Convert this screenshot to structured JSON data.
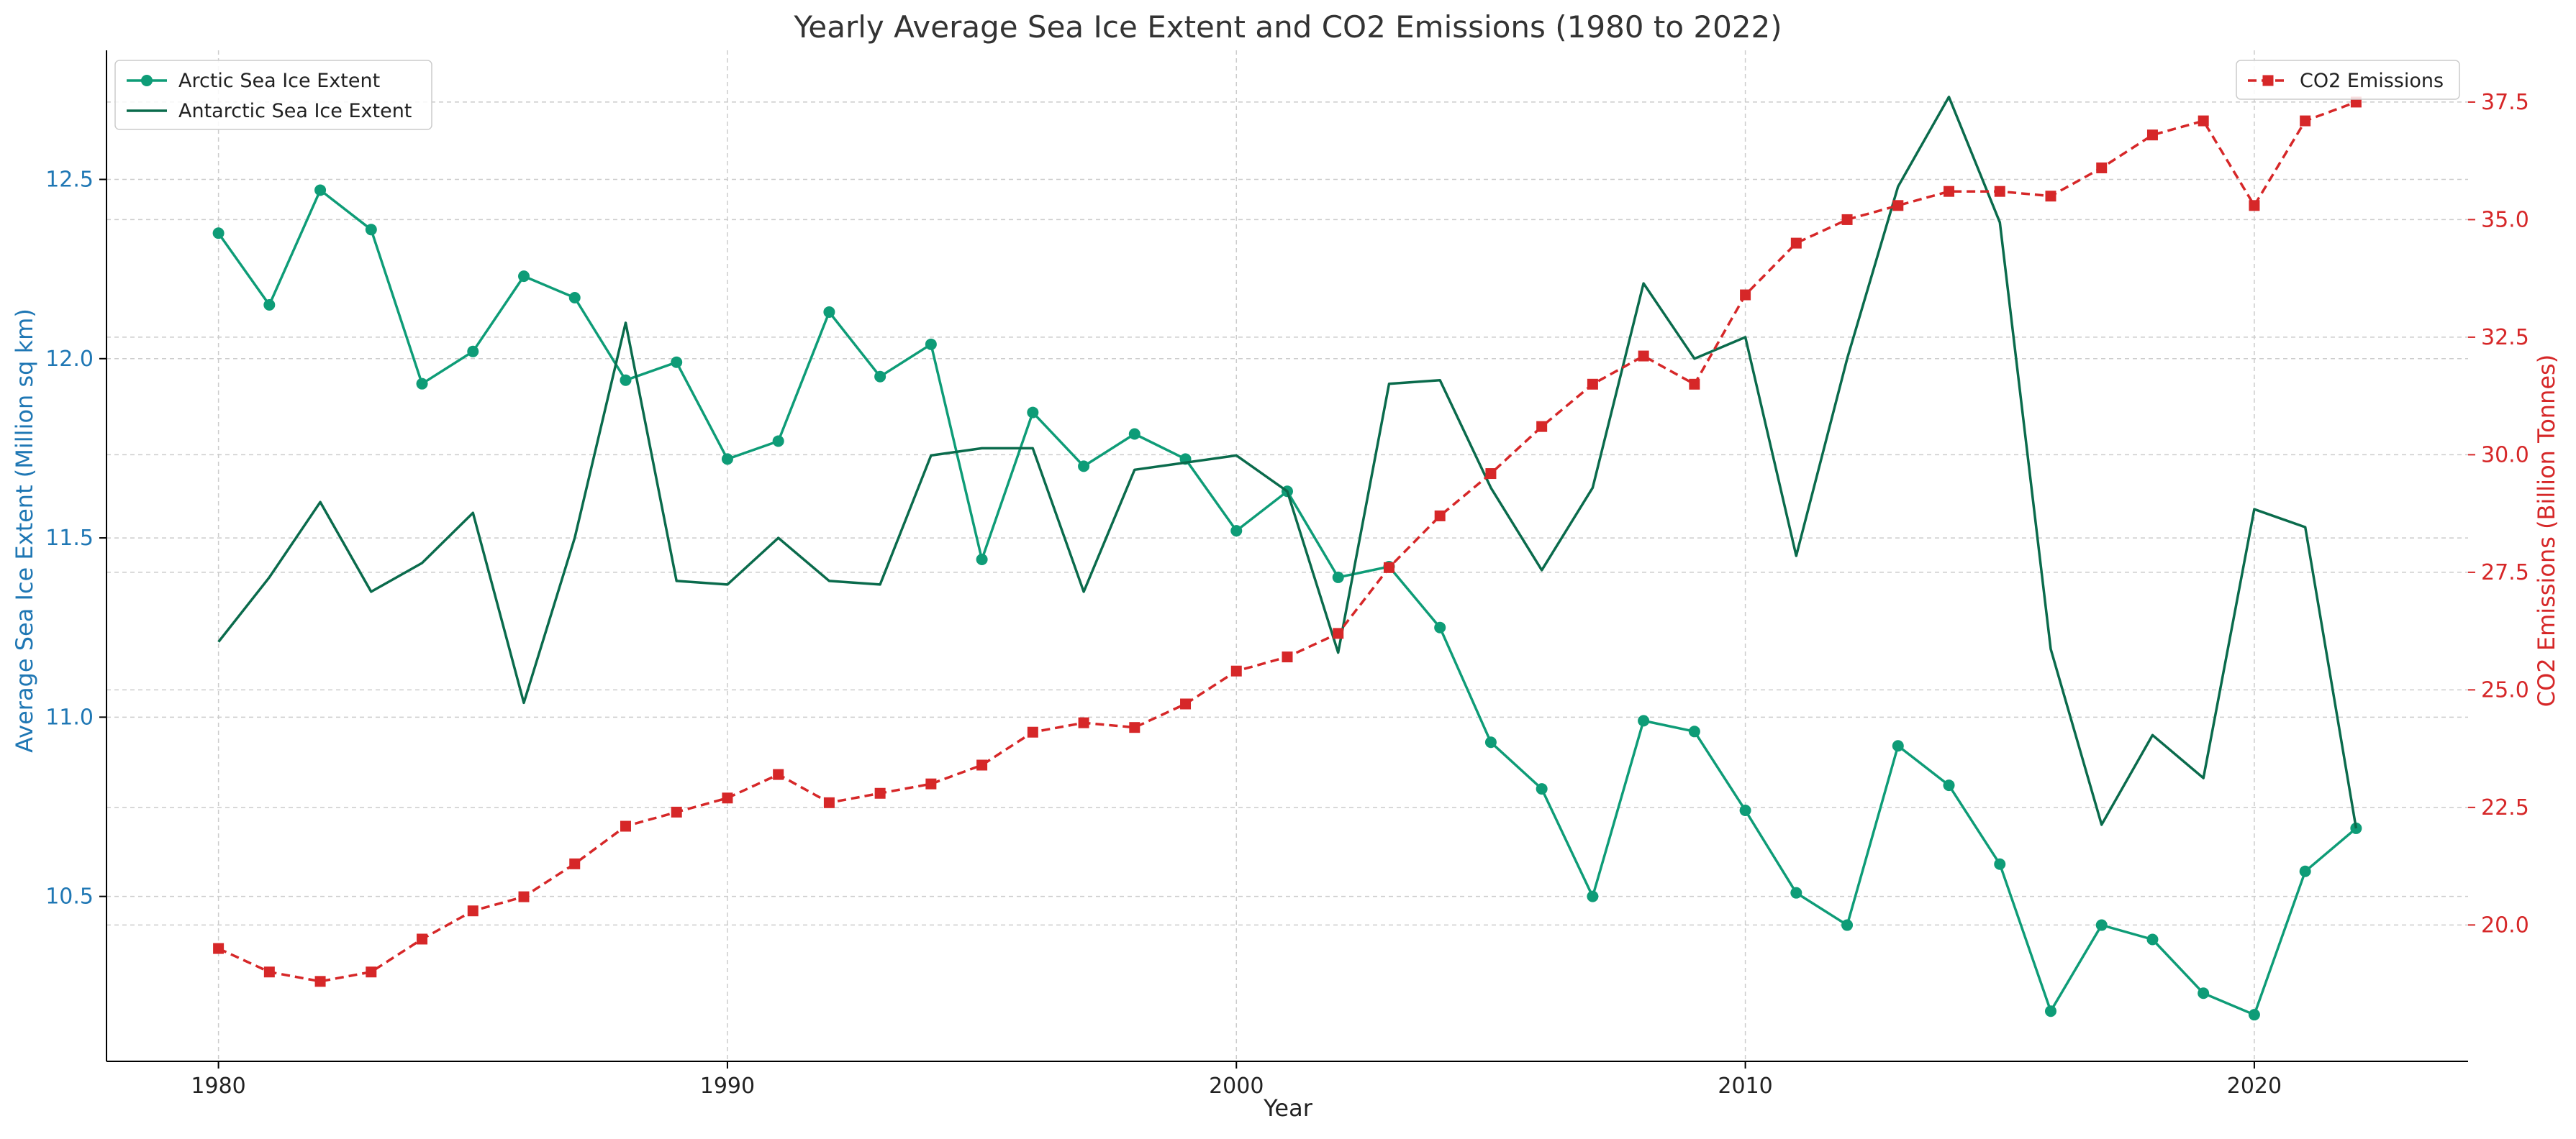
{
  "chart_data": {
    "type": "line",
    "title": "Yearly Average Sea Ice Extent and CO2 Emissions (1980 to 2022)",
    "xlabel": "Year",
    "ylabel_left": "Average Sea Ice Extent (Million sq km)",
    "ylabel_right": "CO2 Emissions (Billion Tonnes)",
    "xlim": [
      1977.8,
      2024.2
    ],
    "ylim_left": [
      10.04,
      12.86
    ],
    "ylim_right": [
      17.1,
      38.6
    ],
    "xticks": [
      1980,
      1990,
      2000,
      2010,
      2020
    ],
    "yticks_left": [
      10.5,
      11.0,
      11.5,
      12.0,
      12.5
    ],
    "yticks_right": [
      20.0,
      22.5,
      25.0,
      27.5,
      30.0,
      32.5,
      35.0,
      37.5
    ],
    "xtick_labels": [
      "1980",
      "1990",
      "2000",
      "2010",
      "2020"
    ],
    "ytick_labels_left": [
      "10.5",
      "11.0",
      "11.5",
      "12.0",
      "12.5"
    ],
    "ytick_labels_right": [
      "20.0",
      "22.5",
      "25.0",
      "27.5",
      "30.0",
      "32.5",
      "35.0",
      "37.5"
    ],
    "grid": true,
    "x": [
      1980,
      1981,
      1982,
      1983,
      1984,
      1985,
      1986,
      1987,
      1988,
      1989,
      1990,
      1991,
      1992,
      1993,
      1994,
      1995,
      1996,
      1997,
      1998,
      1999,
      2000,
      2001,
      2002,
      2003,
      2004,
      2005,
      2006,
      2007,
      2008,
      2009,
      2010,
      2011,
      2012,
      2013,
      2014,
      2015,
      2016,
      2017,
      2018,
      2019,
      2020,
      2021,
      2022
    ],
    "series": [
      {
        "name": "Arctic Sea Ice Extent",
        "axis": "left",
        "color": "#0e9c77",
        "marker": "circle",
        "linestyle": "solid",
        "values": [
          12.35,
          12.15,
          12.47,
          12.36,
          11.93,
          12.02,
          12.23,
          12.17,
          11.94,
          11.99,
          11.72,
          11.77,
          12.13,
          11.95,
          12.04,
          11.44,
          11.85,
          11.7,
          11.79,
          11.72,
          11.52,
          11.63,
          11.39,
          11.42,
          11.25,
          10.93,
          10.8,
          10.5,
          10.99,
          10.96,
          10.74,
          10.51,
          10.42,
          10.92,
          10.81,
          10.59,
          10.18,
          10.42,
          10.38,
          10.23,
          10.17,
          10.57,
          10.69
        ]
      },
      {
        "name": "Antarctic Sea Ice Extent",
        "axis": "left",
        "color": "#0a6b4c",
        "marker": "none",
        "linestyle": "solid",
        "values": [
          11.21,
          11.39,
          11.6,
          11.35,
          11.43,
          11.57,
          11.04,
          11.5,
          12.1,
          11.38,
          11.37,
          11.5,
          11.38,
          11.37,
          11.73,
          11.75,
          11.75,
          11.35,
          11.69,
          11.71,
          11.73,
          11.63,
          11.18,
          11.93,
          11.94,
          11.64,
          11.41,
          11.64,
          12.21,
          12.0,
          12.06,
          11.45,
          12.0,
          12.48,
          12.73,
          12.38,
          11.19,
          10.7,
          10.95,
          10.83,
          11.58,
          11.53,
          10.69
        ]
      },
      {
        "name": "CO2 Emissions",
        "axis": "right",
        "color": "#d62728",
        "marker": "square",
        "linestyle": "dashed",
        "values": [
          19.5,
          19.0,
          18.8,
          19.0,
          19.7,
          20.3,
          20.6,
          21.3,
          22.1,
          22.4,
          22.7,
          23.2,
          22.6,
          22.8,
          23.0,
          23.4,
          24.1,
          24.3,
          24.2,
          24.7,
          25.4,
          25.7,
          26.2,
          27.6,
          28.7,
          29.6,
          30.6,
          31.5,
          32.1,
          31.5,
          33.4,
          34.5,
          35.0,
          35.3,
          35.6,
          35.6,
          35.5,
          36.1,
          36.8,
          37.1,
          35.3,
          37.1,
          37.5
        ]
      }
    ],
    "legend_left": {
      "placement": "top-left",
      "entries": [
        "Arctic Sea Ice Extent",
        "Antarctic Sea Ice Extent"
      ]
    },
    "legend_right": {
      "placement": "top-right",
      "entries": [
        "CO2 Emissions"
      ]
    },
    "colors": {
      "left_axis": "#1f77b4",
      "right_axis": "#d62728",
      "grid": "#cccccc"
    }
  }
}
